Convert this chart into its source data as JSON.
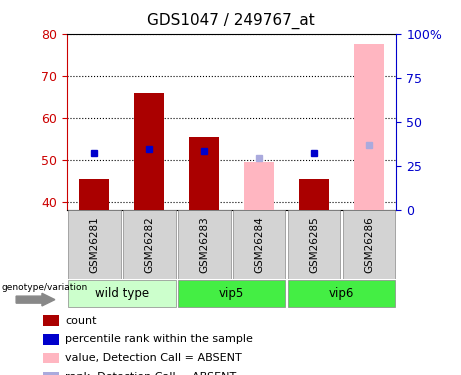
{
  "title": "GDS1047 / 249767_at",
  "samples": [
    "GSM26281",
    "GSM26282",
    "GSM26283",
    "GSM26284",
    "GSM26285",
    "GSM26286"
  ],
  "count_values": [
    45.5,
    66.0,
    55.5,
    null,
    45.5,
    null
  ],
  "count_absent_values": [
    null,
    null,
    null,
    49.5,
    null,
    77.5
  ],
  "rank_values": [
    51.5,
    52.5,
    52.0,
    null,
    51.5,
    null
  ],
  "rank_absent_values": [
    null,
    null,
    null,
    50.5,
    null,
    53.5
  ],
  "ylim_left": [
    38,
    80
  ],
  "ylim_right": [
    0,
    100
  ],
  "yticks_left": [
    40,
    50,
    60,
    70,
    80
  ],
  "ytick_labels_right": [
    "0",
    "25",
    "50",
    "75",
    "100%"
  ],
  "bar_width": 0.55,
  "count_color": "#AA0000",
  "count_absent_color": "#FFB6C1",
  "rank_color": "#0000CC",
  "rank_absent_color": "#AAAADD",
  "left_axis_color": "#CC0000",
  "right_axis_color": "#0000CC",
  "groups_info": [
    {
      "label": "wild type",
      "start": 0,
      "end": 2,
      "color": "#CCFFCC"
    },
    {
      "label": "vip5",
      "start": 2,
      "end": 4,
      "color": "#44EE44"
    },
    {
      "label": "vip6",
      "start": 4,
      "end": 6,
      "color": "#44EE44"
    }
  ],
  "legend_items": [
    {
      "color": "#AA0000",
      "label": "count"
    },
    {
      "color": "#0000CC",
      "label": "percentile rank within the sample"
    },
    {
      "color": "#FFB6C1",
      "label": "value, Detection Call = ABSENT"
    },
    {
      "color": "#AAAADD",
      "label": "rank, Detection Call = ABSENT"
    }
  ],
  "bg_color": "#ffffff"
}
